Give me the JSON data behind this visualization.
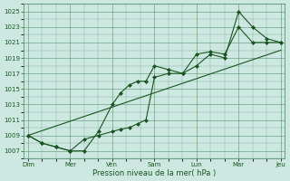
{
  "bg_color": "#cce8e0",
  "grid_color": "#5a9070",
  "line_color": "#1a5520",
  "marker_color": "#1a5520",
  "xlabel": "Pression niveau de la mer( hPa )",
  "ylim": [
    1006.0,
    1026.0
  ],
  "yticks": [
    1007,
    1009,
    1011,
    1013,
    1015,
    1017,
    1019,
    1021,
    1023,
    1025
  ],
  "xtick_major": [
    0,
    1,
    2,
    3,
    4,
    5,
    6
  ],
  "xtick_labels": [
    "Dim",
    "Mer",
    "Ven",
    "Sam",
    "Lun",
    "Mar",
    "Jeu"
  ],
  "line1_x": [
    0.0,
    0.33,
    0.67,
    1.0,
    1.33,
    1.67,
    2.0,
    2.2,
    2.4,
    2.6,
    2.8,
    3.0,
    3.33,
    3.67,
    4.0,
    4.33,
    4.67,
    5.0,
    5.33,
    5.67,
    6.0
  ],
  "line1_y": [
    1009.0,
    1008.0,
    1007.5,
    1007.0,
    1007.0,
    1009.5,
    1013.0,
    1014.5,
    1015.5,
    1016.0,
    1016.0,
    1018.0,
    1017.5,
    1017.0,
    1019.5,
    1019.8,
    1019.5,
    1023.0,
    1021.0,
    1021.0,
    1021.0
  ],
  "line2_x": [
    0.0,
    0.33,
    0.67,
    1.0,
    1.33,
    1.67,
    2.0,
    2.2,
    2.4,
    2.6,
    2.8,
    3.0,
    3.33,
    3.67,
    4.0,
    4.33,
    4.67,
    5.0,
    5.33,
    5.67,
    6.0
  ],
  "line2_y": [
    1009.0,
    1008.0,
    1007.5,
    1007.0,
    1008.5,
    1009.0,
    1009.5,
    1009.8,
    1010.0,
    1010.5,
    1011.0,
    1016.5,
    1017.0,
    1017.0,
    1018.0,
    1019.5,
    1019.0,
    1025.0,
    1023.0,
    1021.5,
    1021.0
  ],
  "line3_x": [
    0.0,
    6.0
  ],
  "line3_y": [
    1009.0,
    1020.0
  ]
}
